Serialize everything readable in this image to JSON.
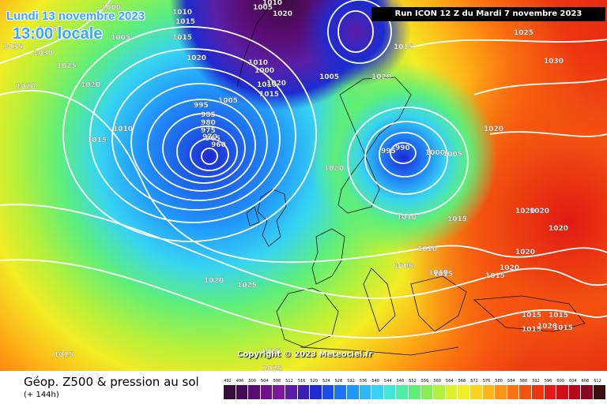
{
  "header": {
    "date": "Lundi 13 novembre 2023",
    "local_time": "13:00 locale",
    "run": "Run ICON 12 Z du Mardi 7 novembre 2023"
  },
  "map": {
    "copyright": "Copyright © 2023 Meteociel.fr",
    "pressure_labels": [
      "1000",
      "1010",
      "1015",
      "1005",
      "1020",
      "1025",
      "1035",
      "1030",
      "1020",
      "1010",
      "1015",
      "1010",
      "1005",
      "1020",
      "1015",
      "1020",
      "1010",
      "1000",
      "1010",
      "1015",
      "1020",
      "1005",
      "1005",
      "1020",
      "995",
      "985",
      "980",
      "975",
      "970",
      "965",
      "960",
      "990",
      "995",
      "1000",
      "1005",
      "1020",
      "1015",
      "1025",
      "1030",
      "1020",
      "1020",
      "1020",
      "1020",
      "1015",
      "1010",
      "1010",
      "1005",
      "1015",
      "1020",
      "1020",
      "1015",
      "1010",
      "1015",
      "1020",
      "1025",
      "1015",
      "1015",
      "1015",
      "1015",
      "1020",
      "1020",
      "1025",
      "1025"
    ]
  },
  "footer": {
    "title": "Géop. Z500 & pression au sol",
    "subtitle": "(+ 144h)"
  },
  "legend": {
    "labels": [
      "492",
      "496",
      "500",
      "504",
      "508",
      "512",
      "516",
      "520",
      "524",
      "528",
      "532",
      "536",
      "540",
      "544",
      "548",
      "552",
      "556",
      "560",
      "564",
      "568",
      "572",
      "576",
      "580",
      "584",
      "588",
      "592",
      "596",
      "600",
      "604",
      "608",
      "612"
    ],
    "colors": [
      "#3b0c3f",
      "#4a0a5a",
      "#5b0c74",
      "#6f1289",
      "#7d179b",
      "#5a1fa6",
      "#3a1fb6",
      "#1e2bd0",
      "#1c4fe6",
      "#1d74f5",
      "#2098fb",
      "#2cb8fb",
      "#37d4f2",
      "#40e6d4",
      "#4cefa4",
      "#5fef78",
      "#86ee55",
      "#b3f03b",
      "#d9f22d",
      "#f2ec25",
      "#fbd21d",
      "#fdb416",
      "#fd9312",
      "#fb7210",
      "#f4520f",
      "#ec3510",
      "#e11a13",
      "#cf0e18",
      "#b8081d",
      "#8c0620",
      "#3e0f10"
    ]
  }
}
